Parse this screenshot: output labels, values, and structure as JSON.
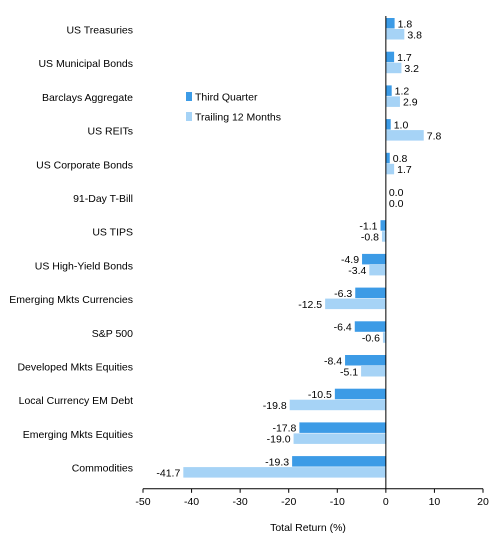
{
  "chart_data": {
    "type": "bar",
    "orientation": "horizontal",
    "categories": [
      "US Treasuries",
      "US Municipal Bonds",
      "Barclays Aggregate",
      "US REITs",
      "US Corporate Bonds",
      "91-Day T-Bill",
      "US TIPS",
      "US High-Yield Bonds",
      "Emerging Mkts Currencies",
      "S&P 500",
      "Developed Mkts Equities",
      "Local Currency EM Debt",
      "Emerging Mkts Equities",
      "Commodities"
    ],
    "series": [
      {
        "name": "Third Quarter",
        "color": "#3c9be6",
        "values": [
          1.8,
          1.7,
          1.2,
          1.0,
          0.8,
          0.0,
          -1.1,
          -4.9,
          -6.3,
          -6.4,
          -8.4,
          -10.5,
          -17.8,
          -19.3
        ],
        "labels": [
          "1.8",
          "1.7",
          "1.2",
          "1.0",
          "0.8",
          "0.0",
          "-1.1",
          "-4.9",
          "-6.3",
          "-6.4",
          "-8.4",
          "-10.5",
          "-17.8",
          "-19.3"
        ]
      },
      {
        "name": "Trailing 12 Months",
        "color": "#a6d3f6",
        "values": [
          3.8,
          3.2,
          2.9,
          7.8,
          1.7,
          0.0,
          -0.8,
          -3.4,
          -12.5,
          -0.6,
          -5.1,
          -19.8,
          -19.0,
          -41.7
        ],
        "labels": [
          "3.8",
          "3.2",
          "2.9",
          "7.8",
          "1.7",
          "0.0",
          "-0.8",
          "-3.4",
          "-12.5",
          "-0.6",
          "-5.1",
          "-19.8",
          "-19.0",
          "-41.7"
        ]
      }
    ],
    "xlabel": "Total Return (%)",
    "xlim": [
      -50,
      20
    ],
    "xticks": [
      -50,
      -40,
      -30,
      -20,
      -10,
      0,
      10,
      20
    ],
    "xtick_labels": [
      "-50",
      "-40",
      "-30",
      "-20",
      "-10",
      "0",
      "10",
      "20"
    ],
    "grid": false,
    "legend_position": "upper-left-center"
  }
}
